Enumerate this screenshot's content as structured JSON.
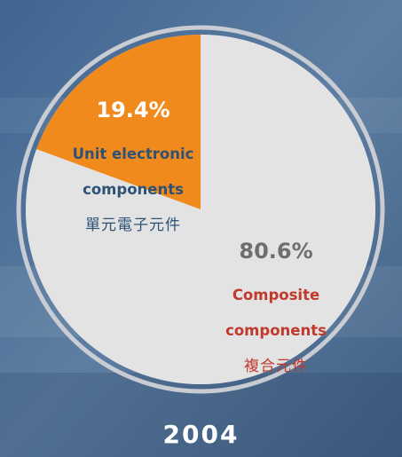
{
  "chart_data": {
    "type": "pie",
    "title": "",
    "caption": "2004",
    "slices": [
      {
        "value": 19.4,
        "percent_label": "19.4%",
        "label_en_line1": "Unit electronic",
        "label_en_line2": "components",
        "label_zh": "單元電子元件",
        "color": "#f08a1c",
        "text_color": "#2d5276"
      },
      {
        "value": 80.6,
        "percent_label": "80.6%",
        "label_en_line1": "Composite",
        "label_en_line2": "components",
        "label_zh": "複合元件",
        "color": "#e3e3e4",
        "text_color": "#c0392b",
        "percent_color": "#6d6e70"
      }
    ],
    "start_angle": "12 o'clock",
    "direction": "counter-clockwise"
  },
  "colors": {
    "background": "#4d6f95",
    "ring": "#c9ccd2",
    "caption": "#ffffff"
  }
}
